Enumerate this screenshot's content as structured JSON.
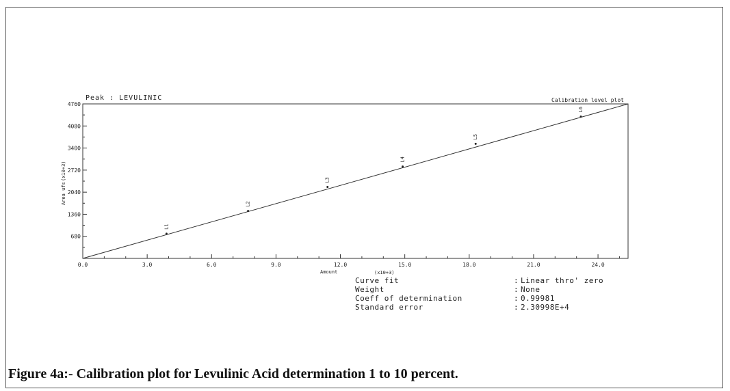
{
  "chart_data": {
    "type": "scatter",
    "title": "Peak : LEVULINIC",
    "subtitle": "Calibration level plot",
    "xlabel": "Amount",
    "xscale_label": "(x10+3)",
    "ylabel": "Area ufs",
    "yscale_label": "(x10+3)",
    "xlim": [
      0,
      25.4
    ],
    "ylim": [
      0,
      4760
    ],
    "xticks": [
      "0.0",
      "3.0",
      "6.0",
      "9.0",
      "12.0",
      "15.0",
      "18.0",
      "21.0",
      "24.0"
    ],
    "xtick_values": [
      0,
      3,
      6,
      9,
      12,
      15,
      18,
      21,
      24
    ],
    "yticks": [
      "680",
      "1360",
      "2040",
      "2720",
      "3400",
      "4080",
      "4760"
    ],
    "ytick_values": [
      680,
      1360,
      2040,
      2720,
      3400,
      4080,
      4760
    ],
    "points": [
      {
        "label": "L1",
        "x": 3.9,
        "y": 760
      },
      {
        "label": "L2",
        "x": 7.7,
        "y": 1460
      },
      {
        "label": "L3",
        "x": 11.4,
        "y": 2200
      },
      {
        "label": "L4",
        "x": 14.9,
        "y": 2830
      },
      {
        "label": "L5",
        "x": 18.3,
        "y": 3530
      },
      {
        "label": "L6",
        "x": 23.2,
        "y": 4370
      }
    ],
    "fit_line": {
      "x": [
        0,
        25.4
      ],
      "y": [
        0,
        4760
      ]
    },
    "grid": false
  },
  "stats": [
    {
      "label": "Curve fit",
      "value": "Linear thro' zero"
    },
    {
      "label": "Weight",
      "value": "None"
    },
    {
      "label": "Coeff of determination",
      "value": "0.99981"
    },
    {
      "label": "Standard error",
      "value": "2.30998E+4"
    }
  ],
  "caption": "Figure 4a:- Calibration plot for Levulinic Acid determination 1 to 10 percent."
}
